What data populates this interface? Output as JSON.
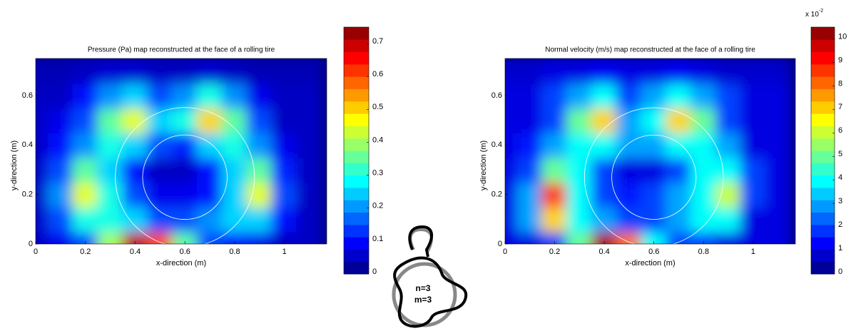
{
  "chart_data": [
    {
      "type": "contour",
      "title": "Pressure (Pa) map reconstructed at the face of a rolling tire",
      "x_label": "x-direction (m)",
      "y_label": "y-direction (m)",
      "xlim": [
        0,
        1.17
      ],
      "ylim": [
        0,
        0.75
      ],
      "xticks": [
        0,
        0.2,
        0.4,
        0.6,
        0.8,
        1
      ],
      "yticks": [
        0,
        0.2,
        0.4,
        0.6
      ],
      "clim": [
        0,
        0.75
      ],
      "cticks": [
        0,
        0.1,
        0.2,
        0.3,
        0.4,
        0.5,
        0.6,
        0.7
      ],
      "colormap": "jet",
      "circles": [
        {
          "cx": 0.6,
          "cy": 0.27,
          "r": 0.28
        },
        {
          "cx": 0.6,
          "cy": 0.27,
          "r": 0.17
        }
      ],
      "x": [
        0,
        0.1,
        0.2,
        0.3,
        0.4,
        0.5,
        0.6,
        0.7,
        0.8,
        0.9,
        1,
        1.1
      ],
      "y": [
        0,
        0.1,
        0.2,
        0.3,
        0.4,
        0.5,
        0.6,
        0.7
      ],
      "z": [
        [
          0.05,
          0.08,
          0.15,
          0.4,
          0.7,
          0.6,
          0.35,
          0.15,
          0.1,
          0.08,
          0.05,
          0.05
        ],
        [
          0.05,
          0.15,
          0.3,
          0.3,
          0.25,
          0.15,
          0.15,
          0.2,
          0.25,
          0.25,
          0.1,
          0.05
        ],
        [
          0.05,
          0.2,
          0.45,
          0.3,
          0.15,
          0.08,
          0.08,
          0.1,
          0.25,
          0.45,
          0.15,
          0.05
        ],
        [
          0.05,
          0.15,
          0.35,
          0.25,
          0.1,
          0.05,
          0.05,
          0.1,
          0.25,
          0.35,
          0.12,
          0.05
        ],
        [
          0.05,
          0.1,
          0.2,
          0.3,
          0.25,
          0.15,
          0.12,
          0.25,
          0.3,
          0.2,
          0.08,
          0.05
        ],
        [
          0.05,
          0.08,
          0.15,
          0.35,
          0.45,
          0.25,
          0.3,
          0.5,
          0.35,
          0.15,
          0.05,
          0.05
        ],
        [
          0.05,
          0.05,
          0.1,
          0.2,
          0.25,
          0.15,
          0.2,
          0.3,
          0.2,
          0.08,
          0.05,
          0.05
        ],
        [
          0.04,
          0.04,
          0.05,
          0.06,
          0.06,
          0.05,
          0.05,
          0.06,
          0.05,
          0.04,
          0.04,
          0.04
        ]
      ]
    },
    {
      "type": "contour",
      "title": "Normal velocity (m/s) map reconstructed at the face of a rolling tire",
      "x_label": "x-direction (m)",
      "y_label": "y-direction (m)",
      "xlim": [
        0,
        1.17
      ],
      "ylim": [
        0,
        0.75
      ],
      "xticks": [
        0,
        0.2,
        0.4,
        0.6,
        0.8,
        1
      ],
      "yticks": [
        0,
        0.2,
        0.4,
        0.6
      ],
      "clim": [
        0,
        0.105
      ],
      "cticks": [
        {
          "value": 0,
          "label": "0"
        },
        {
          "value": 0.01,
          "label": "1"
        },
        {
          "value": 0.02,
          "label": "2"
        },
        {
          "value": 0.03,
          "label": "3"
        },
        {
          "value": 0.04,
          "label": "4"
        },
        {
          "value": 0.05,
          "label": "5"
        },
        {
          "value": 0.06,
          "label": "6"
        },
        {
          "value": 0.07,
          "label": "7"
        },
        {
          "value": 0.08,
          "label": "8"
        },
        {
          "value": 0.09,
          "label": "9"
        },
        {
          "value": 0.1,
          "label": "10"
        }
      ],
      "colorbar_scale": "x 10",
      "colorbar_exponent": "-2",
      "colormap": "jet",
      "circles": [
        {
          "cx": 0.6,
          "cy": 0.27,
          "r": 0.28
        },
        {
          "cx": 0.6,
          "cy": 0.27,
          "r": 0.17
        }
      ],
      "x": [
        0,
        0.1,
        0.2,
        0.3,
        0.4,
        0.5,
        0.6,
        0.7,
        0.8,
        0.9,
        1,
        1.1
      ],
      "y": [
        0,
        0.1,
        0.2,
        0.3,
        0.4,
        0.5,
        0.6,
        0.7
      ],
      "z": [
        [
          0.01,
          0.01,
          0.02,
          0.05,
          0.1,
          0.08,
          0.04,
          0.02,
          0.02,
          0.01,
          0.01,
          0.01
        ],
        [
          0.01,
          0.03,
          0.07,
          0.04,
          0.03,
          0.02,
          0.02,
          0.03,
          0.04,
          0.04,
          0.01,
          0.01
        ],
        [
          0.01,
          0.03,
          0.085,
          0.04,
          0.02,
          0.015,
          0.02,
          0.03,
          0.04,
          0.06,
          0.02,
          0.01
        ],
        [
          0.01,
          0.02,
          0.05,
          0.04,
          0.02,
          0.01,
          0.01,
          0.02,
          0.04,
          0.04,
          0.02,
          0.01
        ],
        [
          0.01,
          0.015,
          0.03,
          0.04,
          0.04,
          0.03,
          0.03,
          0.04,
          0.04,
          0.03,
          0.01,
          0.01
        ],
        [
          0.01,
          0.01,
          0.02,
          0.05,
          0.07,
          0.03,
          0.04,
          0.07,
          0.05,
          0.02,
          0.01,
          0.01
        ],
        [
          0.01,
          0.01,
          0.02,
          0.03,
          0.04,
          0.02,
          0.03,
          0.04,
          0.03,
          0.02,
          0.01,
          0.01
        ],
        [
          0.008,
          0.008,
          0.01,
          0.01,
          0.012,
          0.01,
          0.01,
          0.012,
          0.01,
          0.008,
          0.008,
          0.008
        ]
      ]
    }
  ],
  "diagram": {
    "labels": [
      "n=3",
      "m=3"
    ]
  }
}
